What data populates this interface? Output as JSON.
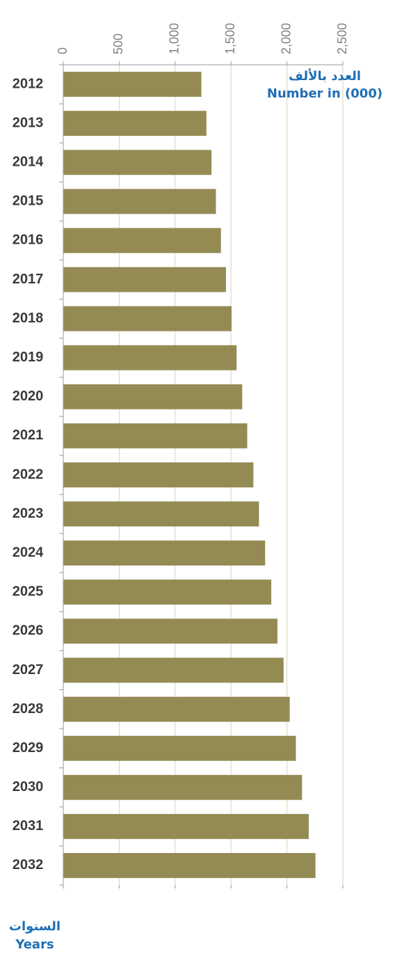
{
  "chart_data": {
    "type": "bar",
    "orientation": "horizontal",
    "categories": [
      "2012",
      "2013",
      "2014",
      "2015",
      "2016",
      "2017",
      "2018",
      "2019",
      "2020",
      "2021",
      "2022",
      "2023",
      "2024",
      "2025",
      "2026",
      "2027",
      "2028",
      "2029",
      "2030",
      "2031",
      "2032"
    ],
    "series": [
      {
        "values": [
          1235,
          1280,
          1325,
          1365,
          1410,
          1455,
          1505,
          1550,
          1600,
          1645,
          1700,
          1750,
          1805,
          1860,
          1915,
          1970,
          2025,
          2080,
          2135,
          2195,
          2255
        ],
        "color": "#948b54"
      }
    ],
    "xlim": [
      0,
      2500
    ],
    "xticks": [
      0,
      500,
      1000,
      1500,
      2000,
      2500
    ],
    "xtick_labels": [
      "0",
      "500",
      "1,000",
      "1,500",
      "2,000",
      "2,500"
    ],
    "value_axis_position": "top",
    "value_axis_title": {
      "arabic": "العدد بالألف",
      "english": "Number in (000)"
    },
    "category_axis_title": {
      "arabic": "السنوات",
      "english": "Years"
    },
    "grid": true,
    "legend": false
  }
}
